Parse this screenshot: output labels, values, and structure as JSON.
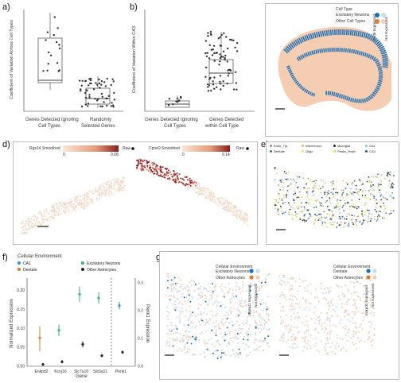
{
  "labels": {
    "a": "a)",
    "b": "b)",
    "c": "c)",
    "d": "d)",
    "e": "e)",
    "f": "f)",
    "g": "g)"
  },
  "panel_a": {
    "ylabel": "Coefficient of Variation Across Cell Types",
    "cat1_line1": "Genes Detected Ignoring",
    "cat1_line2": "Cell Types",
    "cat2_line1": "Randomly",
    "cat2_line2": "Selected Genes",
    "ticks": [
      "0",
      "1",
      "2",
      "3"
    ]
  },
  "panel_b": {
    "ylabel": "Coefficient of Variation Within CA3",
    "cat1_line1": "Genes Detected Ignoring",
    "cat1_line2": "Cell Types",
    "cat2_line1": "Genes Detected",
    "cat2_line2": "within Cell Type",
    "ticks": [
      "0.0",
      "0.5",
      "1.0",
      "1.5",
      "2.0"
    ]
  },
  "panel_c": {
    "legend_title": "Cell Type",
    "legend_item1": "Excitatory Neurons",
    "legend_item2": "Other Cell Types",
    "side1": "Pcdh Expressed",
    "side2": "Not Expressed",
    "colors": {
      "blue": "#1a6fb5",
      "orange": "#e8a27a",
      "light_orange": "#f5cdb3",
      "light_blue": "#c6dcef"
    }
  },
  "panel_d": {
    "gene1": "Rgs14 Smoothed",
    "gene1_min": "0",
    "gene1_max": "0.08",
    "gene2": "Cpne9 Smoothed",
    "gene2_min": "0",
    "gene2_max": "0.14",
    "raw_label": "Raw"
  },
  "panel_e": {
    "legend": [
      {
        "name": "Endo_Tip",
        "color": "#8c8c8c"
      },
      {
        "name": "Interneuron",
        "color": "#e8b36a"
      },
      {
        "name": "Microglia",
        "color": "#222222"
      },
      {
        "name": "CA1",
        "color": "#8fc3e8"
      },
      {
        "name": "Dentate",
        "color": "#2f7f7c"
      },
      {
        "name": "Oligo",
        "color": "#f0df6a"
      },
      {
        "name": "Peaks_Rsab",
        "color": "#e6d94a"
      },
      {
        "name": "CA3",
        "color": "#1e5ea8"
      }
    ]
  },
  "panel_f": {
    "title": "Cellular Environment",
    "legend": [
      {
        "name": "CA1",
        "color": "#3b8fd1"
      },
      {
        "name": "Excitatory Neurons",
        "color": "#33b28e"
      },
      {
        "name": "Dentate",
        "color": "#e0772c"
      },
      {
        "name": "Other Astrocytes",
        "color": "#222222"
      }
    ],
    "ylabel": "Normalized Expression",
    "ylabel2": "Penk1 Expression",
    "xlabel": "Gene",
    "genes": [
      "Enkpd2",
      "Kcnj16",
      "Slc7a10",
      "Slc6a11",
      "Penk1"
    ],
    "yticks": [
      "0.00",
      "0.05",
      "0.10",
      "0.15",
      "0.20"
    ],
    "y2ticks": [
      "0.0",
      "0.1",
      "0.2",
      "0.3"
    ]
  },
  "panel_g": {
    "left_title": "Cellular Environment",
    "left_item1": "Excitatory Neurons",
    "left_item2": "Other Astrocytes",
    "left_side1": "Slc6a11 Expressed",
    "left_side2": "Not Expressed",
    "right_title": "Cellular Environment",
    "right_item1": "Dentate",
    "right_item2": "Other Astrocytes",
    "right_side1": "Enkpd2 Expressed",
    "right_side2": "Not Expressed"
  }
}
